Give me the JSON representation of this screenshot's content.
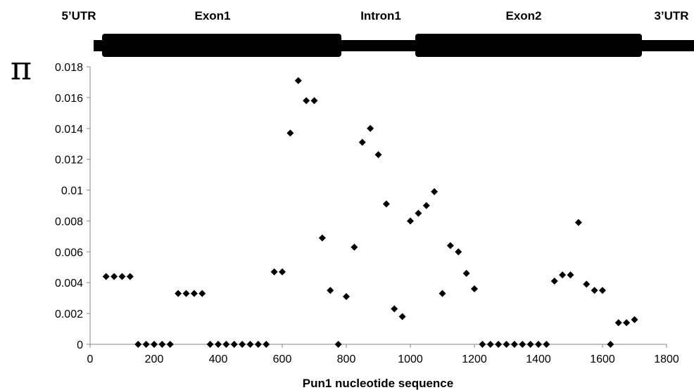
{
  "chart_data": {
    "type": "scatter",
    "title": "",
    "xlabel": "Pun1 nucleotide sequence",
    "ylabel": "π",
    "xlim": [
      0,
      1800
    ],
    "ylim": [
      0,
      0.018
    ],
    "x_ticks": [
      "0",
      "200",
      "400",
      "600",
      "800",
      "1000",
      "1200",
      "1400",
      "1600",
      "1800"
    ],
    "y_ticks": [
      "0",
      "0.002",
      "0.004",
      "0.006",
      "0.008",
      "0.01",
      "0.012",
      "0.014",
      "0.016",
      "0.018"
    ],
    "grid": false,
    "marker": "diamond",
    "marker_color": "#000000",
    "gene_regions": [
      {
        "label": "5’UTR",
        "start": 0,
        "end": 40,
        "kind": "utr"
      },
      {
        "label": "Exon1",
        "start": 40,
        "end": 780,
        "kind": "exon"
      },
      {
        "label": "Intron1",
        "start": 780,
        "end": 1015,
        "kind": "intron"
      },
      {
        "label": "Exon2",
        "start": 1015,
        "end": 1720,
        "kind": "exon"
      },
      {
        "label": "3’UTR",
        "start": 1720,
        "end": 1800,
        "kind": "utr"
      }
    ],
    "points": [
      [
        50,
        0.0044
      ],
      [
        75,
        0.0044
      ],
      [
        100,
        0.0044
      ],
      [
        125,
        0.0044
      ],
      [
        150,
        0.0
      ],
      [
        175,
        0.0
      ],
      [
        200,
        0.0
      ],
      [
        225,
        0.0
      ],
      [
        250,
        0.0
      ],
      [
        275,
        0.0033
      ],
      [
        300,
        0.0033
      ],
      [
        325,
        0.0033
      ],
      [
        350,
        0.0033
      ],
      [
        375,
        0.0
      ],
      [
        400,
        0.0
      ],
      [
        425,
        0.0
      ],
      [
        450,
        0.0
      ],
      [
        475,
        0.0
      ],
      [
        500,
        0.0
      ],
      [
        525,
        0.0
      ],
      [
        550,
        0.0
      ],
      [
        575,
        0.0047
      ],
      [
        600,
        0.0047
      ],
      [
        625,
        0.0137
      ],
      [
        650,
        0.0171
      ],
      [
        675,
        0.0158
      ],
      [
        700,
        0.0158
      ],
      [
        725,
        0.0069
      ],
      [
        750,
        0.0035
      ],
      [
        775,
        0.0
      ],
      [
        800,
        0.0031
      ],
      [
        825,
        0.0063
      ],
      [
        850,
        0.0131
      ],
      [
        875,
        0.014
      ],
      [
        900,
        0.0123
      ],
      [
        925,
        0.0091
      ],
      [
        950,
        0.0023
      ],
      [
        975,
        0.0018
      ],
      [
        1000,
        0.008
      ],
      [
        1025,
        0.0085
      ],
      [
        1050,
        0.009
      ],
      [
        1075,
        0.0099
      ],
      [
        1100,
        0.0033
      ],
      [
        1125,
        0.0064
      ],
      [
        1150,
        0.006
      ],
      [
        1175,
        0.0046
      ],
      [
        1200,
        0.0036
      ],
      [
        1225,
        0.0
      ],
      [
        1250,
        0.0
      ],
      [
        1275,
        0.0
      ],
      [
        1300,
        0.0
      ],
      [
        1325,
        0.0
      ],
      [
        1350,
        0.0
      ],
      [
        1375,
        0.0
      ],
      [
        1400,
        0.0
      ],
      [
        1425,
        0.0
      ],
      [
        1450,
        0.0041
      ],
      [
        1475,
        0.0045
      ],
      [
        1500,
        0.0045
      ],
      [
        1525,
        0.0079
      ],
      [
        1550,
        0.0039
      ],
      [
        1575,
        0.0035
      ],
      [
        1600,
        0.0035
      ],
      [
        1625,
        0.0
      ],
      [
        1650,
        0.0014
      ],
      [
        1675,
        0.0014
      ],
      [
        1700,
        0.0016
      ]
    ]
  }
}
